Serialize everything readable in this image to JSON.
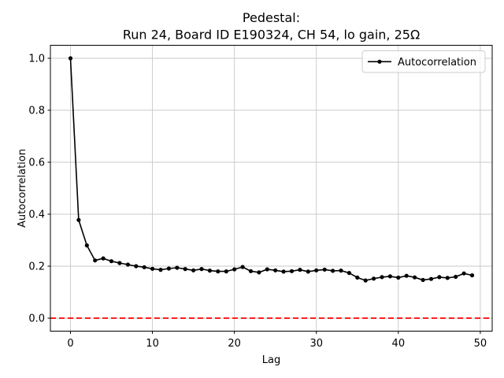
{
  "chart_data": {
    "type": "line",
    "title_lines": [
      "Pedestal:",
      "Run 24, Board ID E190324, CH 54, lo gain, 25Ω"
    ],
    "xlabel": "Lag",
    "ylabel": "Autocorrelation",
    "xlim": [
      -2.45,
      51.45
    ],
    "ylim": [
      -0.05,
      1.05
    ],
    "xticks": [
      "0",
      "10",
      "20",
      "30",
      "40",
      "50"
    ],
    "yticks": [
      "0.0",
      "0.2",
      "0.4",
      "0.6",
      "0.8",
      "1.0"
    ],
    "grid": true,
    "grid_color": "#c8c8c8",
    "background": "#ffffff",
    "spine_color": "#000000",
    "legend": {
      "position": "upper right",
      "entries": [
        {
          "label": "Autocorrelation",
          "color": "#000000",
          "marker": "dot"
        }
      ]
    },
    "series": [
      {
        "name": "Autocorrelation",
        "color": "#000000",
        "marker": "dot",
        "lags": [
          0,
          1,
          2,
          3,
          4,
          5,
          6,
          7,
          8,
          9,
          10,
          11,
          12,
          13,
          14,
          15,
          16,
          17,
          18,
          19,
          20,
          21,
          22,
          23,
          24,
          25,
          26,
          27,
          28,
          29,
          30,
          31,
          32,
          33,
          34,
          35,
          36,
          37,
          38,
          39,
          40,
          41,
          42,
          43,
          44,
          45,
          46,
          47,
          48,
          49
        ],
        "values": [
          1.0,
          0.378,
          0.28,
          0.222,
          0.23,
          0.219,
          0.212,
          0.206,
          0.2,
          0.196,
          0.19,
          0.186,
          0.191,
          0.194,
          0.189,
          0.184,
          0.189,
          0.183,
          0.18,
          0.18,
          0.188,
          0.197,
          0.181,
          0.176,
          0.188,
          0.184,
          0.179,
          0.181,
          0.186,
          0.179,
          0.184,
          0.187,
          0.182,
          0.183,
          0.174,
          0.156,
          0.145,
          0.152,
          0.158,
          0.161,
          0.156,
          0.163,
          0.157,
          0.147,
          0.151,
          0.158,
          0.155,
          0.159,
          0.172,
          0.165
        ]
      }
    ],
    "reference_lines": [
      {
        "y": 0.0,
        "color": "#ff0000",
        "style": "dashed"
      }
    ]
  }
}
